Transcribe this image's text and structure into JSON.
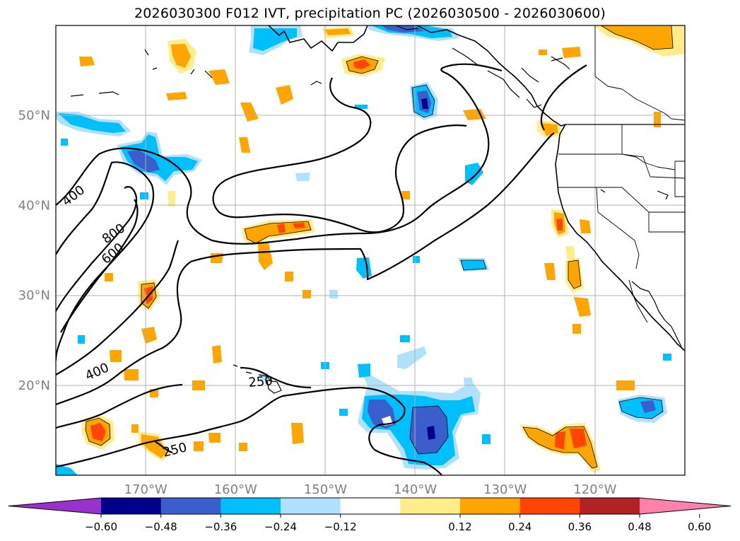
{
  "title": "2026030300 F012 IVT, precipitation PC (2026030500 - 2026030600)",
  "map": {
    "projection": "PlateCarree",
    "lon_range": [
      -180,
      -110
    ],
    "lat_range": [
      10,
      60
    ],
    "lon_ticks": [
      {
        "value": -170,
        "label": "170°W"
      },
      {
        "value": -160,
        "label": "160°W"
      },
      {
        "value": -150,
        "label": "150°W"
      },
      {
        "value": -140,
        "label": "140°W"
      },
      {
        "value": -130,
        "label": "130°W"
      },
      {
        "value": -120,
        "label": "120°W"
      }
    ],
    "lat_ticks": [
      {
        "value": 20,
        "label": "20°N"
      },
      {
        "value": 30,
        "label": "30°N"
      },
      {
        "value": 40,
        "label": "40°N"
      },
      {
        "value": 50,
        "label": "50°N"
      }
    ],
    "grid": true,
    "ivt_contour_labels": [
      "400",
      "800",
      "600",
      "400",
      "250",
      "250"
    ]
  },
  "colorbar": {
    "orientation": "horizontal",
    "extend": "both",
    "colors": [
      "#9932cc",
      "#00008b",
      "#3a5fcd",
      "#00bfff",
      "#b0e2ff",
      "#ffffff",
      "#ffec8b",
      "#ffa500",
      "#ff4500",
      "#b22222",
      "#ff82ab"
    ],
    "boundaries": [
      -0.6,
      -0.48,
      -0.36,
      -0.24,
      -0.12,
      0.12,
      0.24,
      0.36,
      0.48,
      0.6
    ],
    "tick_labels": [
      "−0.60",
      "−0.48",
      "−0.36",
      "−0.24",
      "−0.12",
      "0.12",
      "0.24",
      "0.36",
      "0.48",
      "0.60"
    ]
  }
}
